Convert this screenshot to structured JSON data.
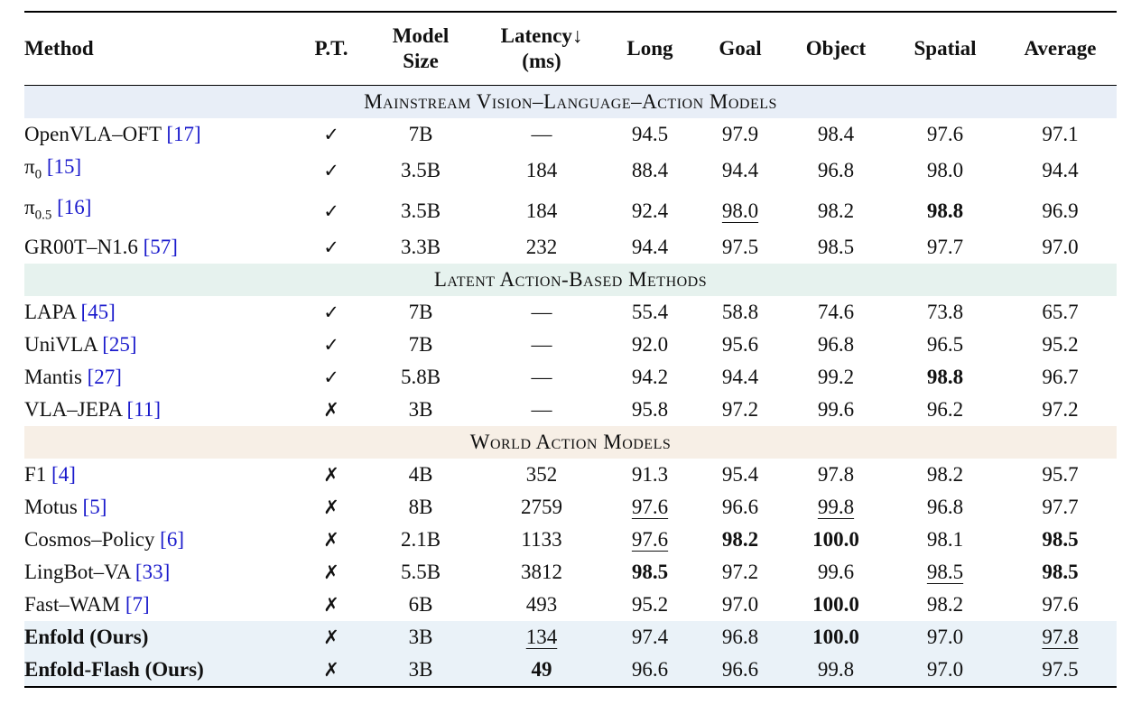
{
  "header": {
    "columns": [
      [
        "Method"
      ],
      [
        "P.T."
      ],
      [
        "Model",
        "Size"
      ],
      [
        "Latency↓",
        "(ms)"
      ],
      [
        "Long"
      ],
      [
        "Goal"
      ],
      [
        "Object"
      ],
      [
        "Spatial"
      ],
      [
        "Average"
      ]
    ]
  },
  "sections": [
    {
      "title": "Mainstream Vision–Language–Action Models",
      "color": "#e8eef7",
      "rows": [
        {
          "method": {
            "name": "OpenVLA–OFT",
            "cite": "[17]"
          },
          "cells": [
            "✓",
            "7B",
            "—",
            "94.5",
            "97.9",
            "98.4",
            "97.6",
            "97.1"
          ],
          "bold": [],
          "underline": []
        },
        {
          "method": {
            "name": "π",
            "sub": "0",
            "cite": "[15]"
          },
          "cells": [
            "✓",
            "3.5B",
            "184",
            "88.4",
            "94.4",
            "96.8",
            "98.0",
            "94.4"
          ],
          "bold": [],
          "underline": []
        },
        {
          "method": {
            "name": "π",
            "sub": "0.5",
            "cite": "[16]"
          },
          "cells": [
            "✓",
            "3.5B",
            "184",
            "92.4",
            "98.0",
            "98.2",
            "98.8",
            "96.9"
          ],
          "bold": [
            6
          ],
          "underline": [
            4
          ]
        },
        {
          "method": {
            "name": "GR00T–N1.6",
            "cite": "[57]"
          },
          "cells": [
            "✓",
            "3.3B",
            "232",
            "94.4",
            "97.5",
            "98.5",
            "97.7",
            "97.0"
          ],
          "bold": [],
          "underline": []
        }
      ]
    },
    {
      "title": "Latent Action-Based Methods",
      "color": "#e6f2ee",
      "rows": [
        {
          "method": {
            "name": "LAPA",
            "cite": "[45]"
          },
          "cells": [
            "✓",
            "7B",
            "—",
            "55.4",
            "58.8",
            "74.6",
            "73.8",
            "65.7"
          ],
          "bold": [],
          "underline": []
        },
        {
          "method": {
            "name": "UniVLA",
            "cite": "[25]"
          },
          "cells": [
            "✓",
            "7B",
            "—",
            "92.0",
            "95.6",
            "96.8",
            "96.5",
            "95.2"
          ],
          "bold": [],
          "underline": []
        },
        {
          "method": {
            "name": "Mantis",
            "cite": "[27]"
          },
          "cells": [
            "✓",
            "5.8B",
            "—",
            "94.2",
            "94.4",
            "99.2",
            "98.8",
            "96.7"
          ],
          "bold": [
            6
          ],
          "underline": []
        },
        {
          "method": {
            "name": "VLA–JEPA",
            "cite": "[11]"
          },
          "cells": [
            "✗",
            "3B",
            "—",
            "95.8",
            "97.2",
            "99.6",
            "96.2",
            "97.2"
          ],
          "bold": [],
          "underline": []
        }
      ]
    },
    {
      "title": "World Action Models",
      "color": "#f7efe6",
      "rows": [
        {
          "method": {
            "name": "F1",
            "cite": "[4]"
          },
          "cells": [
            "✗",
            "4B",
            "352",
            "91.3",
            "95.4",
            "97.8",
            "98.2",
            "95.7"
          ],
          "bold": [],
          "underline": []
        },
        {
          "method": {
            "name": "Motus",
            "cite": "[5]"
          },
          "cells": [
            "✗",
            "8B",
            "2759",
            "97.6",
            "96.6",
            "99.8",
            "96.8",
            "97.7"
          ],
          "bold": [],
          "underline": [
            3,
            5
          ]
        },
        {
          "method": {
            "name": "Cosmos–Policy",
            "cite": "[6]"
          },
          "cells": [
            "✗",
            "2.1B",
            "1133",
            "97.6",
            "98.2",
            "100.0",
            "98.1",
            "98.5"
          ],
          "bold": [
            4,
            5,
            7
          ],
          "underline": [
            3
          ]
        },
        {
          "method": {
            "name": "LingBot–VA",
            "cite": "[33]"
          },
          "cells": [
            "✗",
            "5.5B",
            "3812",
            "98.5",
            "97.2",
            "99.6",
            "98.5",
            "98.5"
          ],
          "bold": [
            3,
            7
          ],
          "underline": [
            6
          ]
        },
        {
          "method": {
            "name": "Fast–WAM",
            "cite": "[7]"
          },
          "cells": [
            "✗",
            "6B",
            "493",
            "95.2",
            "97.0",
            "100.0",
            "98.2",
            "97.6"
          ],
          "bold": [
            5
          ],
          "underline": []
        },
        {
          "method": {
            "name": "Enfold (Ours)"
          },
          "ours": true,
          "cells": [
            "✗",
            "3B",
            "134",
            "97.4",
            "96.8",
            "100.0",
            "97.0",
            "97.8"
          ],
          "bold": [
            5
          ],
          "underline": [
            2,
            7
          ]
        },
        {
          "method": {
            "name": "Enfold-Flash (Ours)"
          },
          "ours": true,
          "cells": [
            "✗",
            "3B",
            "49",
            "96.6",
            "96.6",
            "99.8",
            "97.0",
            "97.5"
          ],
          "bold": [
            2
          ],
          "underline": []
        }
      ]
    }
  ],
  "ours_color": "#eaf2f8",
  "cite_color": "#1a1acc"
}
